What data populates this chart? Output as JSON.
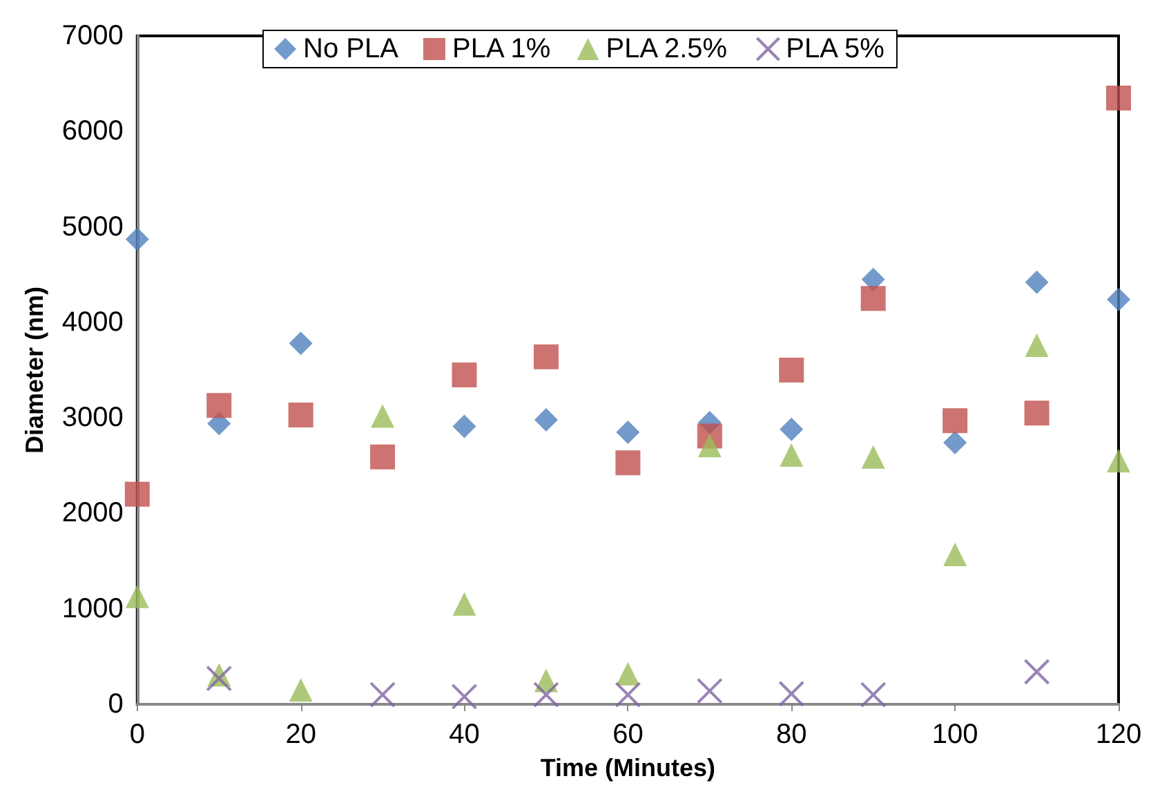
{
  "chart_data": {
    "type": "scatter",
    "xlabel": "Time (Minutes)",
    "ylabel": "Diameter (nm)",
    "x": [
      0,
      10,
      20,
      30,
      40,
      50,
      60,
      70,
      80,
      90,
      100,
      110,
      120
    ],
    "xlim": [
      0,
      120
    ],
    "xticks": [
      0,
      20,
      40,
      60,
      80,
      100,
      120
    ],
    "ylim": [
      0,
      7000
    ],
    "yticks": [
      0,
      1000,
      2000,
      3000,
      4000,
      5000,
      6000,
      7000
    ],
    "grid": false,
    "legend": "top",
    "series": [
      {
        "name": "No PLA",
        "color": "#4f81bd",
        "marker": "diamond",
        "values": [
          4870,
          2940,
          3780,
          null,
          2910,
          2980,
          2850,
          2950,
          2880,
          4450,
          2740,
          4420,
          4240
        ]
      },
      {
        "name": "PLA 1%",
        "color": "#c0504d",
        "marker": "square",
        "values": [
          2200,
          3130,
          3030,
          2590,
          3450,
          3640,
          2530,
          2810,
          3500,
          4250,
          2970,
          3050,
          6350
        ]
      },
      {
        "name": "PLA 2.5%",
        "color": "#9bbb59",
        "marker": "triangle",
        "values": [
          1130,
          310,
          150,
          3020,
          1050,
          250,
          320,
          2710,
          2610,
          2590,
          1570,
          3760,
          2550
        ]
      },
      {
        "name": "PLA 5%",
        "color": "#8064a2",
        "marker": "cross",
        "values": [
          null,
          270,
          null,
          100,
          80,
          100,
          100,
          140,
          110,
          100,
          null,
          340,
          null
        ]
      }
    ]
  }
}
